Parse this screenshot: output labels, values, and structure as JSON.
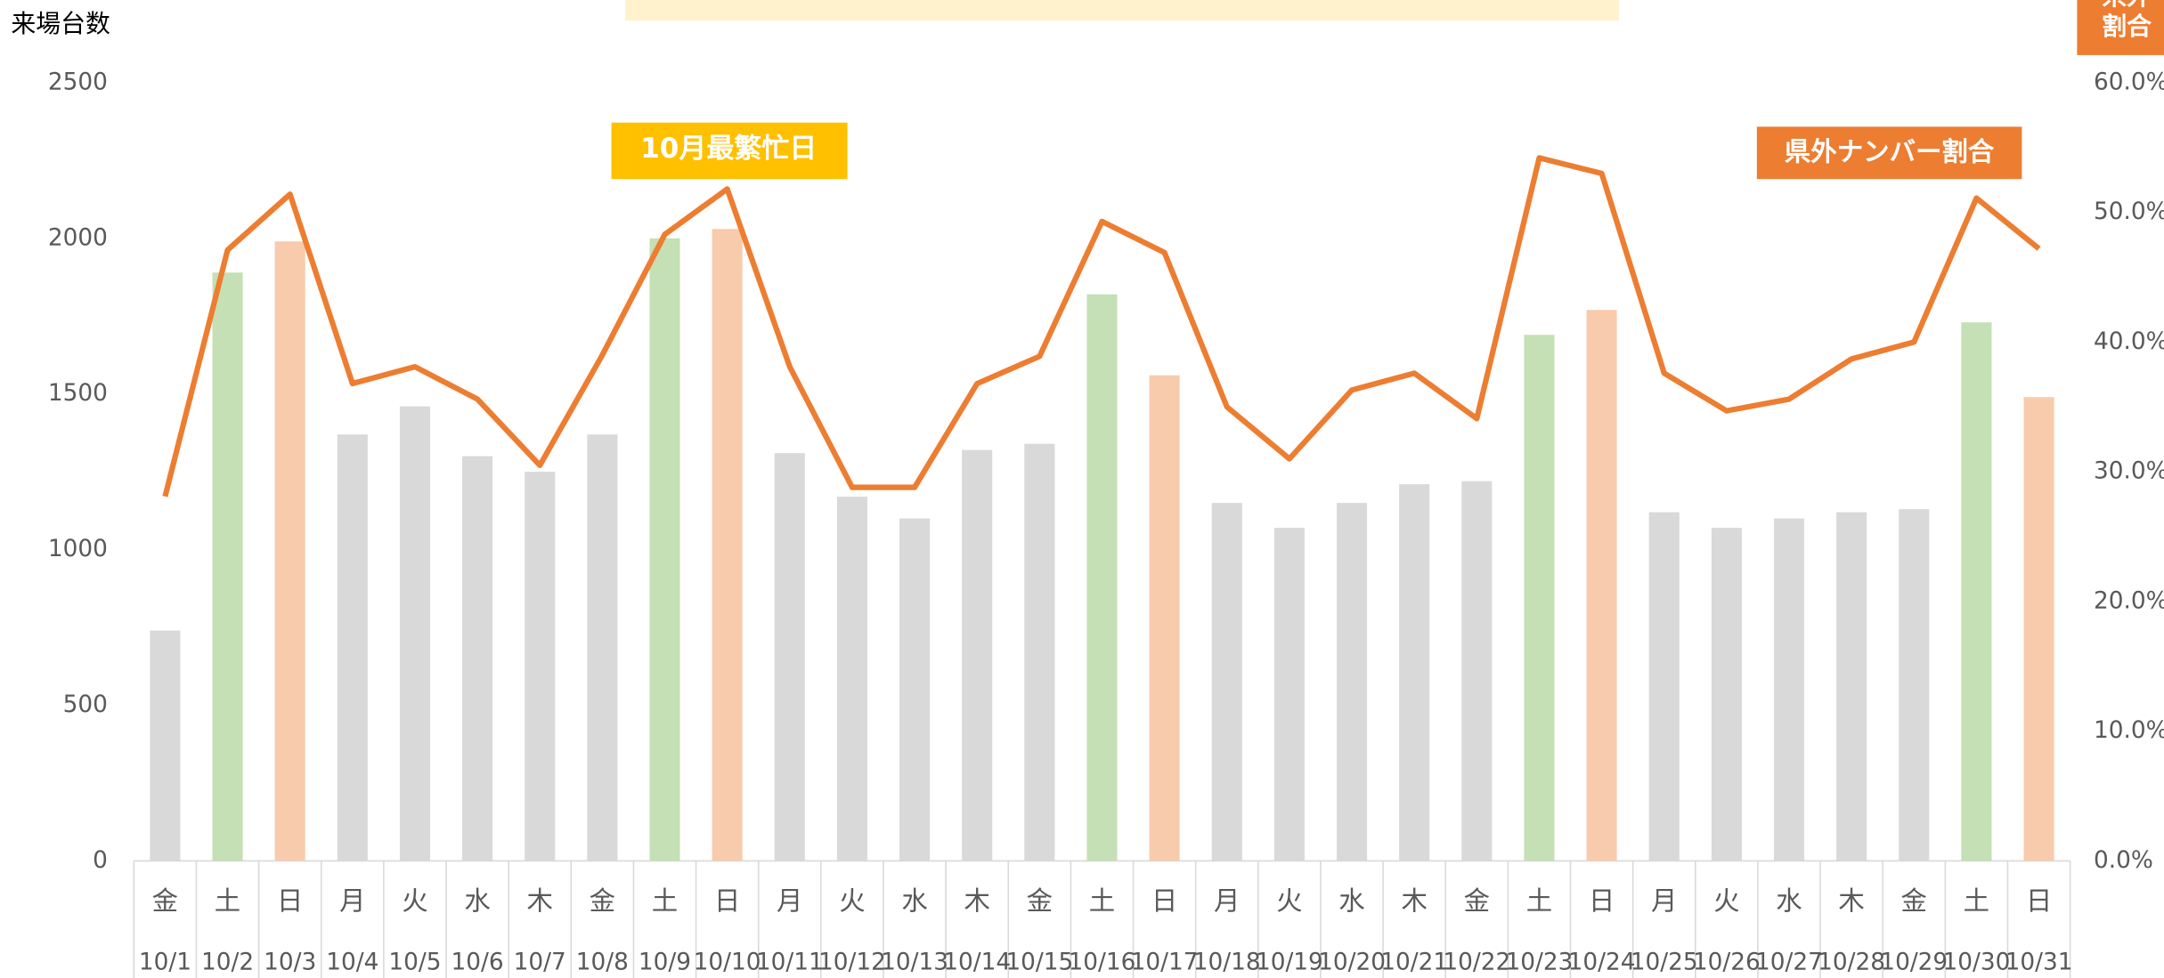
{
  "chart_data": {
    "type": "bar_line",
    "y_label": "来場台数",
    "y2_label_lines": [
      "県外",
      "割合"
    ],
    "annotations": [
      "10月最繁忙日",
      "県外ナンバー割合"
    ],
    "categories": [
      "10/1",
      "10/2",
      "10/3",
      "10/4",
      "10/5",
      "10/6",
      "10/7",
      "10/8",
      "10/9",
      "10/10",
      "10/11",
      "10/12",
      "10/13",
      "10/14",
      "10/15",
      "10/16",
      "10/17",
      "10/18",
      "10/19",
      "10/20",
      "10/21",
      "10/22",
      "10/23",
      "10/24",
      "10/25",
      "10/26",
      "10/27",
      "10/28",
      "10/29",
      "10/30",
      "10/31"
    ],
    "weekdays": [
      "金",
      "土",
      "日",
      "月",
      "火",
      "水",
      "木",
      "金",
      "土",
      "日",
      "月",
      "火",
      "水",
      "木",
      "金",
      "土",
      "日",
      "月",
      "火",
      "水",
      "木",
      "金",
      "土",
      "日",
      "月",
      "火",
      "水",
      "木",
      "金",
      "土",
      "日"
    ],
    "series": [
      {
        "name": "来場台数",
        "type": "bar",
        "colors": [
          "#d9d9d9",
          "#c5e0b4",
          "#f8cbad",
          "#d9d9d9",
          "#d9d9d9",
          "#d9d9d9",
          "#d9d9d9",
          "#d9d9d9",
          "#c5e0b4",
          "#f8cbad",
          "#d9d9d9",
          "#d9d9d9",
          "#d9d9d9",
          "#d9d9d9",
          "#d9d9d9",
          "#c5e0b4",
          "#f8cbad",
          "#d9d9d9",
          "#d9d9d9",
          "#d9d9d9",
          "#d9d9d9",
          "#d9d9d9",
          "#c5e0b4",
          "#f8cbad",
          "#d9d9d9",
          "#d9d9d9",
          "#d9d9d9",
          "#d9d9d9",
          "#d9d9d9",
          "#c5e0b4",
          "#f8cbad"
        ],
        "values": [
          740,
          1890,
          1990,
          1370,
          1460,
          1300,
          1250,
          1370,
          2000,
          2030,
          1310,
          1170,
          1100,
          1320,
          1340,
          1820,
          1560,
          1150,
          1070,
          1150,
          1210,
          1220,
          1690,
          1770,
          1120,
          1070,
          1100,
          1120,
          1130,
          1730,
          1490
        ]
      },
      {
        "name": "県外ナンバー割合",
        "type": "line",
        "axis": "y2",
        "color": "#ed7d31",
        "values": [
          28.1,
          47.1,
          51.4,
          36.8,
          38.1,
          35.6,
          30.5,
          39.0,
          48.3,
          51.8,
          38.1,
          28.8,
          28.8,
          36.8,
          38.9,
          49.3,
          46.9,
          35.0,
          31.0,
          36.3,
          37.6,
          34.1,
          54.2,
          53.0,
          37.6,
          34.7,
          35.6,
          38.7,
          40.0,
          51.1,
          47.2
        ]
      }
    ],
    "ylim": [
      0,
      2500
    ],
    "yticks": [
      0,
      500,
      1000,
      1500,
      2000,
      2500
    ],
    "y2lim": [
      0,
      60
    ],
    "y2ticks": [
      {
        "value": 0,
        "label": "0.0%"
      },
      {
        "value": 10,
        "label": "10.0%"
      },
      {
        "value": 20,
        "label": "20.0%"
      },
      {
        "value": 30,
        "label": "30.0%"
      },
      {
        "value": 40,
        "label": "40.0%"
      },
      {
        "value": 50,
        "label": "50.0%"
      },
      {
        "value": 60,
        "label": "60.0%"
      }
    ]
  }
}
